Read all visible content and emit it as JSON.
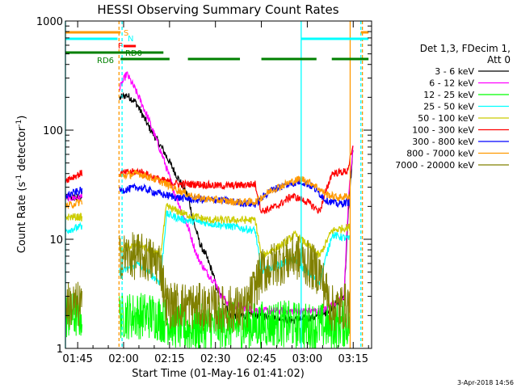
{
  "chart_data": {
    "type": "line",
    "title": "HESSI Observing Summary Count Rates",
    "xlabel": "Start Time (01-May-16 01:41:02)",
    "ylabel_main": "Count Rate (s",
    "ylabel_exp1": "-1",
    "ylabel_mid": " detector",
    "ylabel_exp2": "-1",
    "ylabel_end": ")",
    "yscale": "log",
    "ylim": [
      1,
      1000
    ],
    "xlim_minutes": [
      101,
      201
    ],
    "x_ticks": [
      {
        "label": "01:45",
        "t": 105
      },
      {
        "label": "02:00",
        "t": 120
      },
      {
        "label": "02:15",
        "t": 135
      },
      {
        "label": "02:30",
        "t": 150
      },
      {
        "label": "02:45",
        "t": 165
      },
      {
        "label": "03:00",
        "t": 180
      },
      {
        "label": "03:15",
        "t": 195
      }
    ],
    "y_ticks": [
      {
        "label": "1",
        "v": 1
      },
      {
        "label": "10",
        "v": 10
      },
      {
        "label": "100",
        "v": 100
      },
      {
        "label": "1000",
        "v": 1000
      }
    ],
    "legend_title_1": "Det 1,3, FDecim 1,",
    "legend_title_2": "Att 0",
    "legend_position": "right",
    "series": [
      {
        "name": "3 - 6 keV",
        "color": "#000000",
        "points": [
          [
            101,
            24
          ],
          [
            106,
            24
          ],
          [
            119,
            200
          ],
          [
            121,
            210
          ],
          [
            124,
            180
          ],
          [
            128,
            110
          ],
          [
            133,
            65
          ],
          [
            137,
            40
          ],
          [
            141,
            25
          ],
          [
            143,
            14
          ],
          [
            145,
            9
          ],
          [
            147,
            7
          ],
          [
            149,
            5
          ],
          [
            150.5,
            3.5
          ],
          [
            155,
            2
          ],
          [
            165,
            2
          ],
          [
            175,
            1.8
          ],
          [
            185,
            2
          ],
          [
            192,
            3
          ],
          [
            193.5,
            20
          ],
          [
            195,
            70
          ]
        ]
      },
      {
        "name": "6 - 12 keV",
        "color": "#ff00ff",
        "points": [
          [
            101,
            24
          ],
          [
            106,
            24
          ],
          [
            119,
            250
          ],
          [
            121,
            330
          ],
          [
            124,
            230
          ],
          [
            128,
            130
          ],
          [
            133,
            55
          ],
          [
            137,
            25
          ],
          [
            141,
            13
          ],
          [
            144,
            7
          ],
          [
            147,
            5
          ],
          [
            150,
            4
          ],
          [
            152,
            3
          ],
          [
            155,
            2.5
          ],
          [
            165,
            2.2
          ],
          [
            175,
            2.2
          ],
          [
            185,
            2.2
          ],
          [
            192,
            3
          ],
          [
            193.5,
            25
          ],
          [
            195,
            75
          ]
        ]
      },
      {
        "name": "12 - 25 keV",
        "color": "#00ff00",
        "points": [
          [
            101,
            2
          ],
          [
            106,
            2
          ],
          [
            119,
            2
          ],
          [
            130,
            2
          ],
          [
            140,
            1.5
          ],
          [
            150,
            1.6
          ],
          [
            160,
            1.6
          ],
          [
            170,
            1.7
          ],
          [
            180,
            1.6
          ],
          [
            188,
            1.6
          ],
          [
            194,
            1.7
          ]
        ]
      },
      {
        "name": "25 - 50 keV",
        "color": "#00ffff",
        "points": [
          [
            101,
            12
          ],
          [
            106,
            13
          ],
          [
            119,
            5
          ],
          [
            125,
            6
          ],
          [
            132,
            4
          ],
          [
            134,
            17
          ],
          [
            140,
            15
          ],
          [
            148,
            14
          ],
          [
            156,
            13
          ],
          [
            163,
            12
          ],
          [
            165,
            5
          ],
          [
            172,
            6
          ],
          [
            176,
            6.5
          ],
          [
            180,
            5
          ],
          [
            184,
            4
          ],
          [
            188,
            11
          ],
          [
            194,
            10
          ]
        ]
      },
      {
        "name": "50 - 100 keV",
        "color": "#cccc00",
        "points": [
          [
            101,
            16
          ],
          [
            106,
            16
          ],
          [
            119,
            8
          ],
          [
            125,
            9
          ],
          [
            132,
            7
          ],
          [
            134,
            20
          ],
          [
            140,
            17
          ],
          [
            148,
            15
          ],
          [
            156,
            15
          ],
          [
            163,
            15
          ],
          [
            165,
            7
          ],
          [
            172,
            9
          ],
          [
            176,
            11
          ],
          [
            180,
            9
          ],
          [
            184,
            7
          ],
          [
            188,
            12
          ],
          [
            194,
            13
          ]
        ]
      },
      {
        "name": "100 - 300 keV",
        "color": "#ff0000",
        "points": [
          [
            101,
            35
          ],
          [
            106,
            40
          ],
          [
            119,
            40
          ],
          [
            125,
            42
          ],
          [
            132,
            35
          ],
          [
            138,
            32
          ],
          [
            144,
            32
          ],
          [
            150,
            31
          ],
          [
            156,
            31
          ],
          [
            163,
            32
          ],
          [
            165,
            18
          ],
          [
            170,
            20
          ],
          [
            175,
            25
          ],
          [
            180,
            22
          ],
          [
            184,
            18
          ],
          [
            188,
            40
          ],
          [
            193,
            42
          ],
          [
            195,
            70
          ]
        ]
      },
      {
        "name": "300 - 800 keV",
        "color": "#0000ff",
        "points": [
          [
            101,
            25
          ],
          [
            106,
            28
          ],
          [
            119,
            28
          ],
          [
            125,
            30
          ],
          [
            132,
            26
          ],
          [
            138,
            24
          ],
          [
            144,
            23
          ],
          [
            150,
            23
          ],
          [
            156,
            22
          ],
          [
            163,
            21
          ],
          [
            168,
            28
          ],
          [
            174,
            32
          ],
          [
            178,
            34
          ],
          [
            182,
            30
          ],
          [
            186,
            23
          ],
          [
            190,
            21
          ],
          [
            194,
            22
          ]
        ]
      },
      {
        "name": "800 - 7000 keV",
        "color": "#ff9900",
        "points": [
          [
            101,
            20
          ],
          [
            106,
            22
          ],
          [
            119,
            38
          ],
          [
            125,
            40
          ],
          [
            132,
            34
          ],
          [
            138,
            28
          ],
          [
            144,
            24
          ],
          [
            150,
            23
          ],
          [
            156,
            22
          ],
          [
            163,
            22
          ],
          [
            168,
            28
          ],
          [
            174,
            33
          ],
          [
            178,
            36
          ],
          [
            182,
            32
          ],
          [
            186,
            26
          ],
          [
            190,
            24
          ],
          [
            194,
            25
          ]
        ]
      },
      {
        "name": "7000 - 20000 keV",
        "color": "#808000",
        "points": [
          [
            101,
            2.5
          ],
          [
            106,
            2.5
          ],
          [
            119,
            7
          ],
          [
            125,
            7
          ],
          [
            132,
            6
          ],
          [
            134,
            2.5
          ],
          [
            140,
            2.5
          ],
          [
            150,
            2.3
          ],
          [
            160,
            2.3
          ],
          [
            165,
            5
          ],
          [
            170,
            6
          ],
          [
            176,
            7
          ],
          [
            180,
            6
          ],
          [
            184,
            5
          ],
          [
            188,
            2.3
          ],
          [
            194,
            2.5
          ]
        ]
      }
    ],
    "state_bars": [
      {
        "label": "S",
        "color": "#ff9900",
        "segments": [
          [
            101,
            119
          ],
          [
            197.5,
            200
          ]
        ]
      },
      {
        "label": "N",
        "color": "#00ffff",
        "segments": [
          [
            101,
            118
          ],
          [
            178,
            200
          ]
        ]
      },
      {
        "label": "F",
        "color": "#ff0000",
        "segments": [
          [
            120,
            124
          ]
        ]
      },
      {
        "label": "RD0",
        "color": "#008000",
        "segments": [
          [
            101,
            133
          ]
        ]
      },
      {
        "label": "RD6",
        "color": "#008000",
        "segments": [
          [
            119,
            135
          ],
          [
            141,
            158
          ],
          [
            165,
            183
          ],
          [
            188,
            200
          ]
        ]
      }
    ],
    "vertical_markers": [
      {
        "t": 101,
        "color": "#00ffff",
        "style": "solid"
      },
      {
        "t": 118.5,
        "color": "#ff9900",
        "style": "dashed"
      },
      {
        "t": 119.5,
        "color": "#00ffff",
        "style": "dashed"
      },
      {
        "t": 178,
        "color": "#00ffff",
        "style": "solid"
      },
      {
        "t": 194,
        "color": "#ff9900",
        "style": "solid"
      },
      {
        "t": 197.5,
        "color": "#00ffff",
        "style": "dashed"
      },
      {
        "t": 198,
        "color": "#ff9900",
        "style": "dashed"
      }
    ],
    "timestamp": "3-Apr-2018 14:56"
  }
}
